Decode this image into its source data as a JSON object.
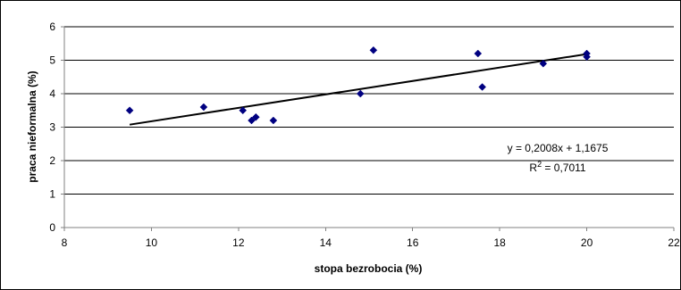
{
  "chart_data": {
    "type": "scatter",
    "xlabel": "stopa bezrobocia (%)",
    "ylabel": "praca nieformalna (%)",
    "xlim": [
      8,
      22
    ],
    "ylim": [
      0,
      6
    ],
    "x_ticks": [
      8,
      10,
      12,
      14,
      16,
      18,
      20,
      22
    ],
    "y_ticks": [
      0,
      1,
      2,
      3,
      4,
      5,
      6
    ],
    "grid": {
      "horizontal": true,
      "vertical": false
    },
    "series": [
      {
        "marker": "diamond",
        "color": "#000080",
        "points": [
          {
            "x": 9.5,
            "y": 3.5
          },
          {
            "x": 11.2,
            "y": 3.6
          },
          {
            "x": 12.1,
            "y": 3.5
          },
          {
            "x": 12.3,
            "y": 3.2
          },
          {
            "x": 12.4,
            "y": 3.3
          },
          {
            "x": 12.8,
            "y": 3.2
          },
          {
            "x": 14.8,
            "y": 4.0
          },
          {
            "x": 15.1,
            "y": 5.3
          },
          {
            "x": 17.5,
            "y": 5.2
          },
          {
            "x": 17.6,
            "y": 4.2
          },
          {
            "x": 19.0,
            "y": 4.9
          },
          {
            "x": 20.0,
            "y": 5.2
          },
          {
            "x": 20.0,
            "y": 5.1
          }
        ]
      }
    ],
    "trendline": {
      "type": "linear",
      "slope": 0.2008,
      "intercept": 1.1675,
      "x_from": 9.5,
      "x_to": 20.0,
      "color": "#000000",
      "equation_text": "y = 0,2008x + 1,1675",
      "r2_prefix": "R",
      "r2_sup": "2",
      "r2_suffix": " = 0,7011"
    }
  }
}
